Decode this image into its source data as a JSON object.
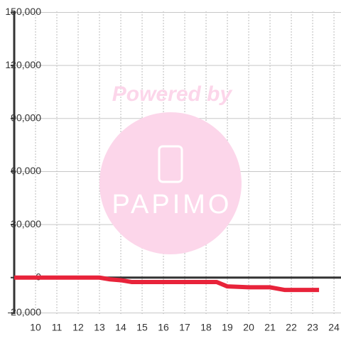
{
  "chart_data": {
    "type": "line",
    "x": [
      9,
      13,
      13.5,
      14,
      14.5,
      18,
      18.5,
      19,
      20,
      21,
      21.7,
      23.3
    ],
    "series": [
      {
        "color": "#e8233a",
        "values": [
          0,
          0,
          -1000,
          -1500,
          -2500,
          -2500,
          -2500,
          -5000,
          -5500,
          -5500,
          -7000,
          -7000
        ]
      }
    ],
    "xlim": [
      9,
      24.33
    ],
    "xticks": [
      10,
      11,
      12,
      13,
      14,
      15,
      16,
      17,
      18,
      19,
      20,
      21,
      22,
      23,
      24
    ],
    "ylim": [
      -20600,
      150600
    ],
    "yticks": [
      {
        "value": -20000,
        "label": "-20,000"
      },
      0,
      {
        "value": 30000,
        "label": "30,000"
      },
      {
        "value": 60000,
        "label": "60,000"
      },
      {
        "value": 90000,
        "label": "90,000"
      },
      {
        "value": 120000,
        "label": "120,000"
      },
      {
        "value": 150000,
        "label": "150,000"
      }
    ],
    "grid": true,
    "watermark": {
      "top": "Powered by",
      "brand": "PAPIMO"
    }
  }
}
